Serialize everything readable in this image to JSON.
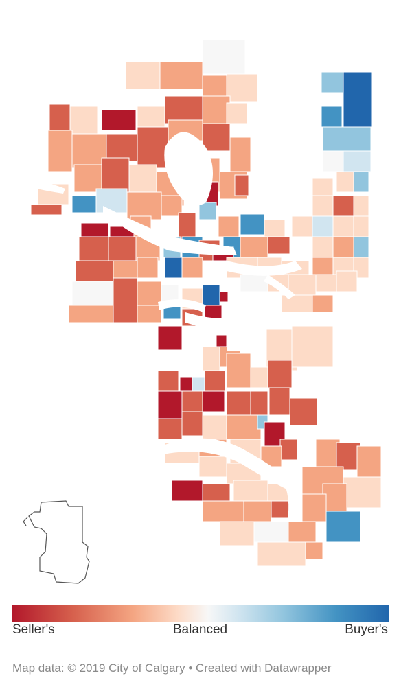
{
  "legend": {
    "left_label": "Seller's",
    "middle_label": "Balanced",
    "right_label": "Buyer's",
    "colors": [
      "#b2182b",
      "#d6604d",
      "#f4a582",
      "#fddbc7",
      "#f7f7f7",
      "#d1e5f0",
      "#92c5de",
      "#4393c3",
      "#2166ac"
    ]
  },
  "credit": "Map data: © 2019 City of Calgary • Created with Datawrapper",
  "map": {
    "type": "choropleth",
    "subject": "Calgary communities",
    "river_color": "#ffffff",
    "inset_outline_color": "#555555"
  }
}
